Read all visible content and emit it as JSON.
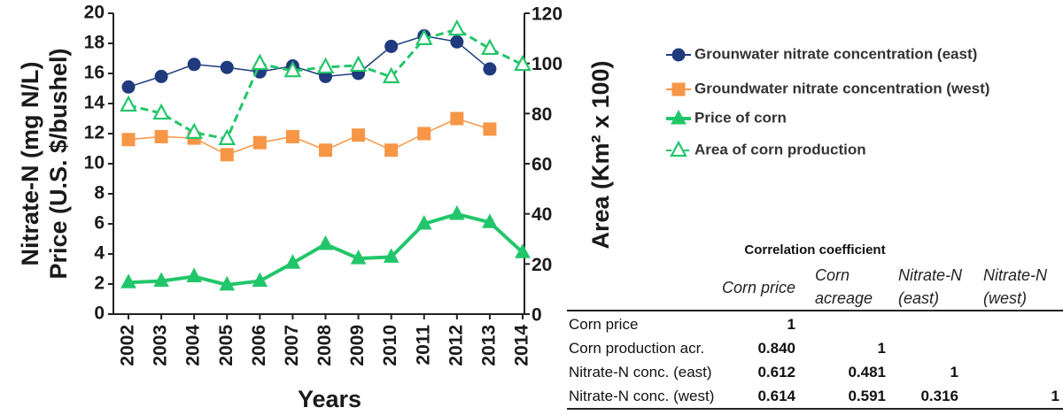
{
  "chart_data": {
    "type": "line",
    "x_label": "Years",
    "y_label": [
      "Nitrate-N (mg N/L)",
      "Price (U.S. $/bushel)"
    ],
    "y2_label": "Area (Km² x 100)",
    "categories": [
      "2002",
      "2003",
      "2004",
      "2005",
      "2006",
      "2007",
      "2008",
      "2009",
      "2010",
      "2011",
      "2012",
      "2013",
      "2014"
    ],
    "ylim": [
      0,
      20
    ],
    "yticks": [
      0,
      2,
      4,
      6,
      8,
      10,
      12,
      14,
      16,
      18,
      20
    ],
    "y2lim": [
      0,
      120
    ],
    "y2ticks": [
      0,
      20,
      40,
      60,
      80,
      100,
      120
    ],
    "legend": "right",
    "series": [
      {
        "name": "Grounwater nitrate concentration (east)",
        "color": "#1f3b7d",
        "marker": "circle",
        "filled": true,
        "line_style": "solid",
        "values": [
          15.1,
          15.8,
          16.6,
          16.4,
          16.1,
          16.5,
          15.8,
          16.0,
          17.8,
          18.5,
          18.1,
          16.3,
          null
        ]
      },
      {
        "name": "Groundwater nitrate concentration (west)",
        "color": "#f79646",
        "marker": "square",
        "filled": true,
        "line_style": "solid",
        "values": [
          11.6,
          11.8,
          11.7,
          10.6,
          11.4,
          11.8,
          10.9,
          11.9,
          10.9,
          12.0,
          13.0,
          12.3,
          null
        ]
      },
      {
        "name": "Price of corn",
        "color": "#22c66a",
        "marker": "triangle",
        "filled": true,
        "line_style": "thick",
        "values": [
          2.1,
          2.2,
          2.5,
          1.95,
          2.2,
          3.4,
          4.65,
          3.7,
          3.8,
          6.0,
          6.65,
          6.1,
          4.1
        ]
      },
      {
        "name": "Area of corn production",
        "color": "#22c66a",
        "marker": "triangle",
        "filled": false,
        "line_style": "dashed",
        "axis": "y2",
        "values": [
          83.3,
          80.1,
          72.4,
          69.9,
          99.9,
          97,
          98.5,
          99.2,
          94.6,
          109.8,
          113.6,
          105.9,
          99.5
        ]
      }
    ]
  },
  "table": {
    "title": "Correlation coefficient",
    "columns": [
      "Corn price",
      "Corn acreage",
      "Nitrate-N (east)",
      "Nitrate-N (west)"
    ],
    "rows": [
      [
        "Corn price",
        "1"
      ],
      [
        "Corn production acr.",
        "0.840",
        "1"
      ],
      [
        "Nitrate-N conc. (east)",
        "0.612",
        "0.481",
        "1"
      ],
      [
        "Nitrate-N conc. (west)",
        "0.614",
        "0.591",
        "0.316",
        "1"
      ]
    ]
  }
}
